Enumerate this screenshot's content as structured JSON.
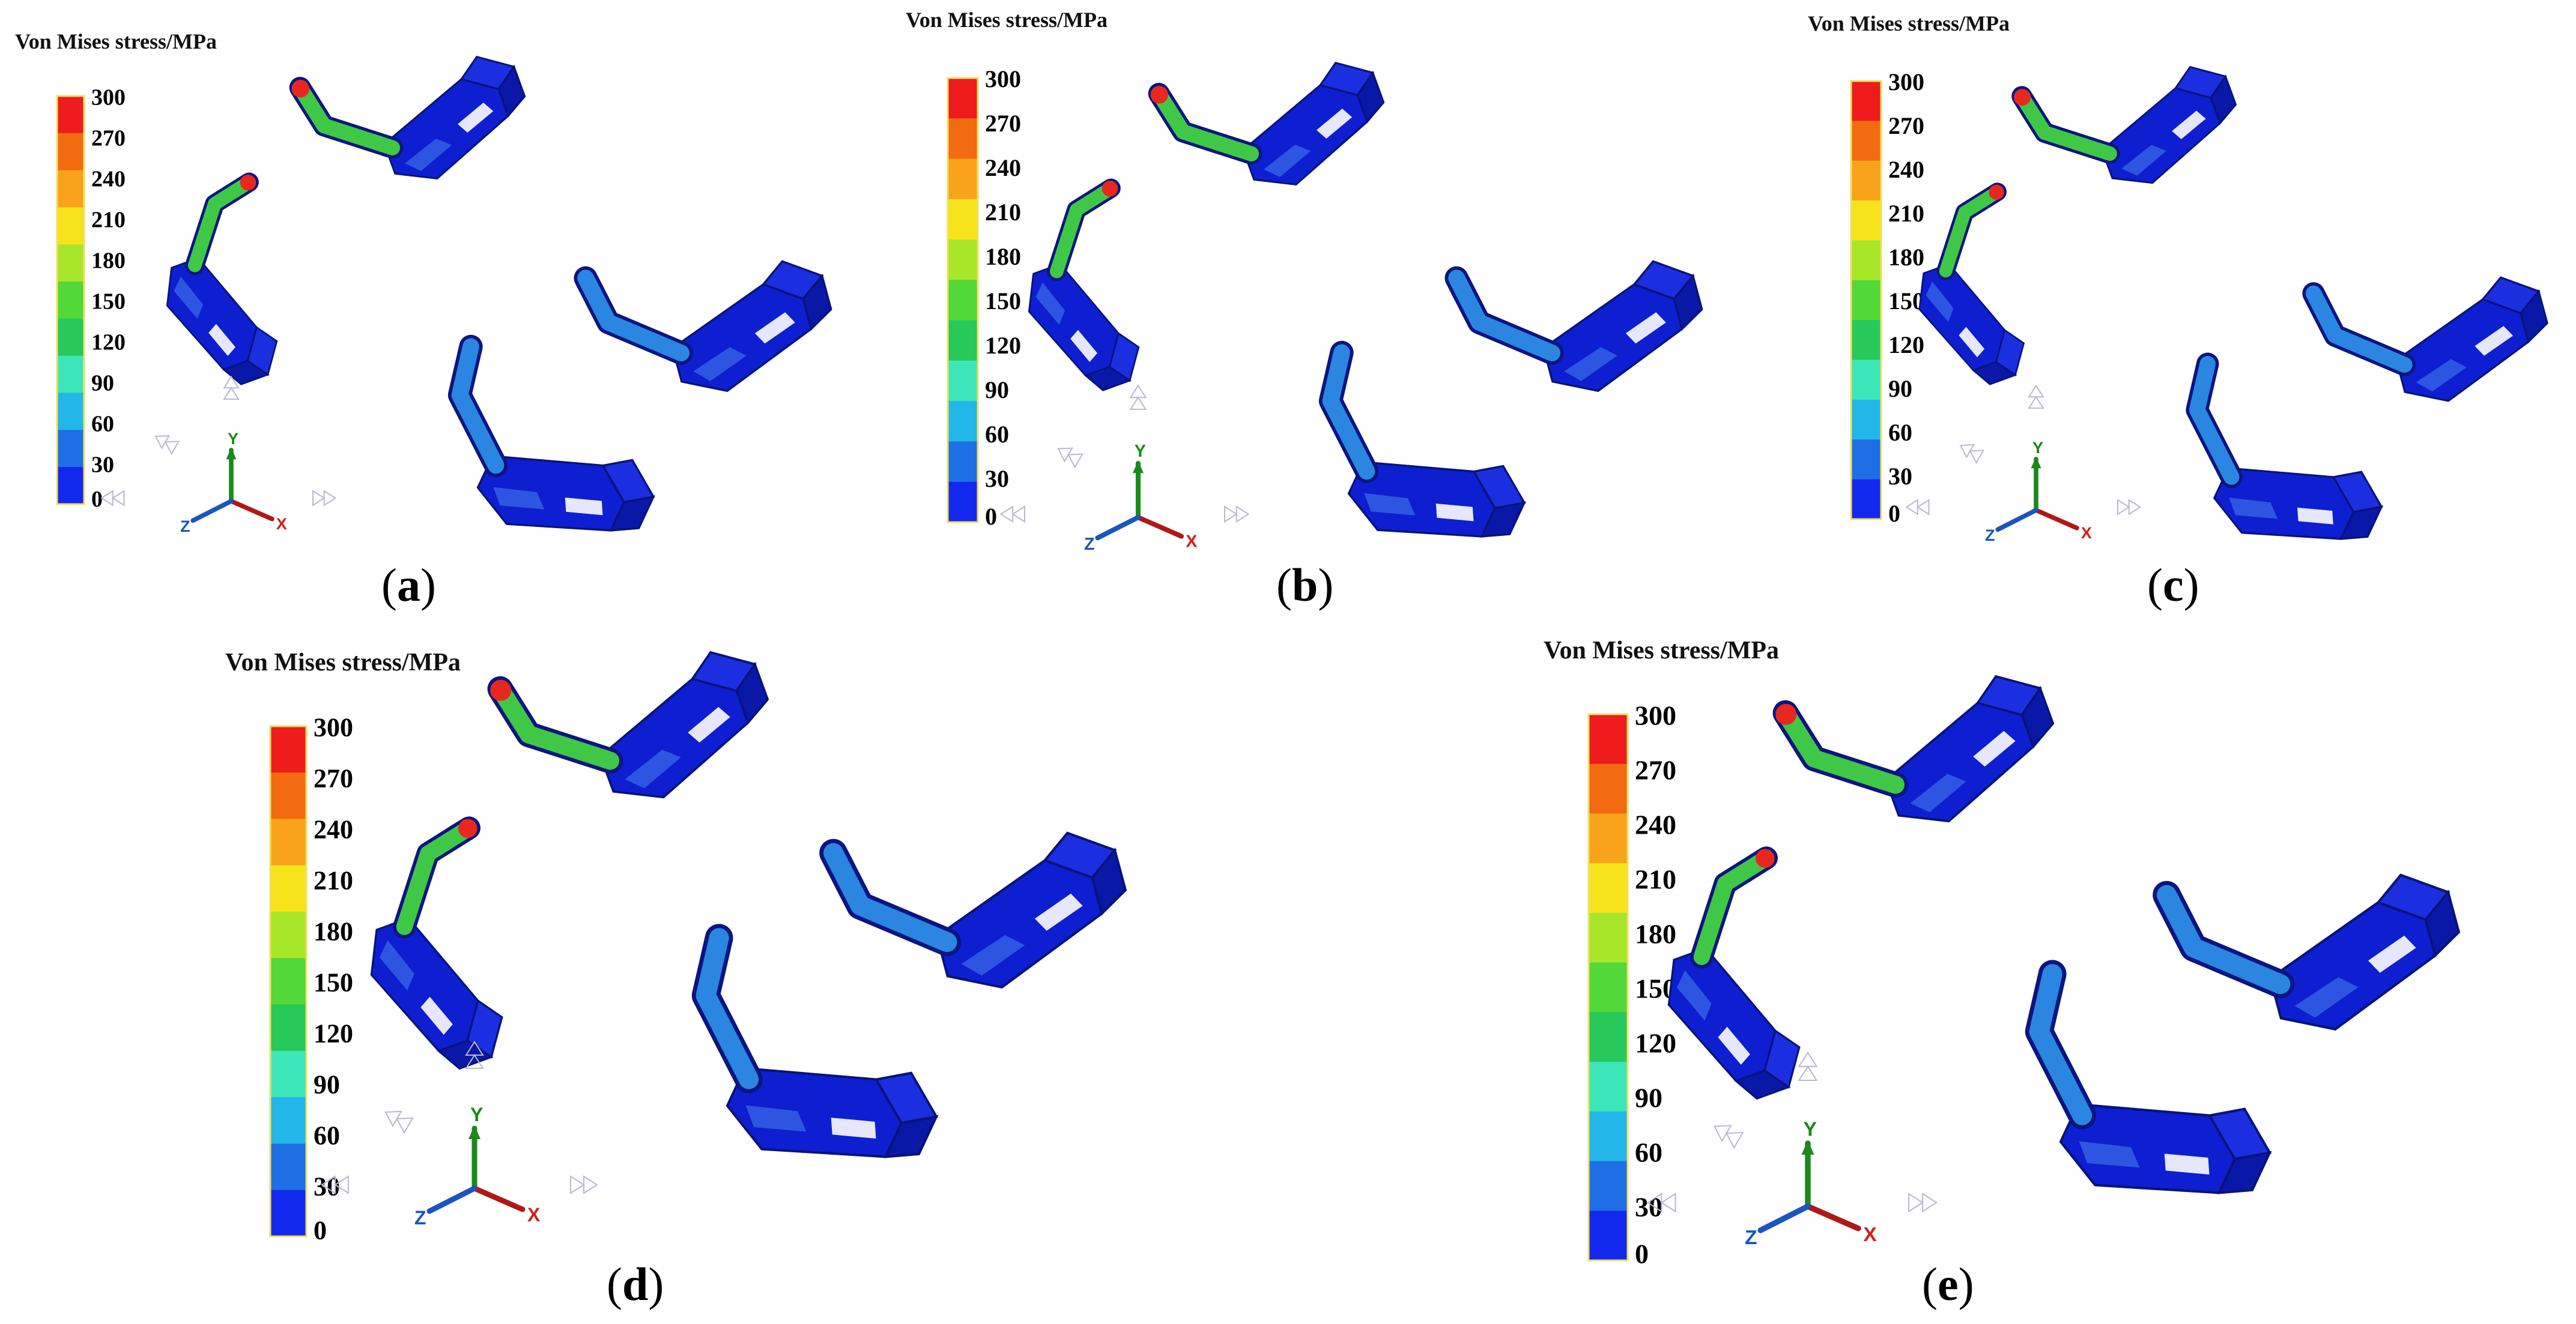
{
  "legend": {
    "title": "Von Mises stress/MPa",
    "ticks": [
      "300",
      "270",
      "240",
      "210",
      "180",
      "150",
      "120",
      "90",
      "60",
      "30",
      "0"
    ],
    "colors": [
      "#ee1c1c",
      "#f36b10",
      "#f9a31a",
      "#f6e31c",
      "#a8e62a",
      "#52d838",
      "#26c95a",
      "#3ce6b8",
      "#22b7e8",
      "#1e6fe6",
      "#1328ef"
    ]
  },
  "triad": {
    "x": "X",
    "y": "Y",
    "z": "Z"
  },
  "colors": {
    "body": "#0d1fd0",
    "rod_blue": "#2a86e0",
    "rod_green": "#3fc845",
    "hot": "#e8281e"
  },
  "panels": [
    {
      "id": "a",
      "label": "a",
      "paren_open": "(",
      "paren_close": ")"
    },
    {
      "id": "b",
      "label": "b",
      "paren_open": "(",
      "paren_close": ")"
    },
    {
      "id": "c",
      "label": "c",
      "paren_open": "(",
      "paren_close": ")"
    },
    {
      "id": "d",
      "label": "d",
      "paren_open": "(",
      "paren_close": ")"
    },
    {
      "id": "e",
      "label": "e",
      "paren_open": "(",
      "paren_close": ")"
    }
  ]
}
